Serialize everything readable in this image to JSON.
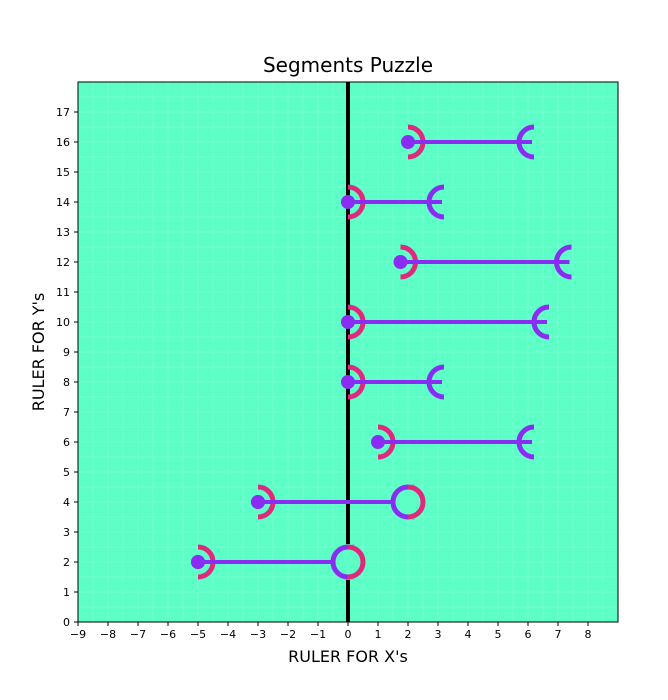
{
  "chart_data": {
    "type": "segments",
    "title": "Segments Puzzle",
    "xlabel": "RULER FOR X's",
    "ylabel": "RULER FOR Y's",
    "xlim": [
      -9,
      9
    ],
    "ylim": [
      0,
      18
    ],
    "x_ticks": [
      -9,
      -8,
      -7,
      -6,
      -5,
      -4,
      -3,
      -2,
      -1,
      0,
      1,
      2,
      3,
      4,
      5,
      6,
      7,
      8
    ],
    "y_ticks": [
      0,
      1,
      2,
      3,
      4,
      5,
      6,
      7,
      8,
      9,
      10,
      11,
      12,
      13,
      14,
      15,
      16,
      17
    ],
    "grid": true,
    "reference_line_x": 0,
    "colors": {
      "background": "#5effc6",
      "segment": "#8b2cf5",
      "accent": "#e0287c",
      "reference_line": "#000000"
    },
    "segments": [
      {
        "y": 16,
        "x_start": 2,
        "x_end": 6
      },
      {
        "y": 14,
        "x_start": 0,
        "x_end": 3
      },
      {
        "y": 12,
        "x_start": 1.75,
        "x_end": 7.25
      },
      {
        "y": 10,
        "x_start": 0,
        "x_end": 6.5
      },
      {
        "y": 8,
        "x_start": 0,
        "x_end": 3
      },
      {
        "y": 6,
        "x_start": 1,
        "x_end": 6
      },
      {
        "y": 4,
        "x_start": -3,
        "x_end": 2
      },
      {
        "y": 2,
        "x_start": -5,
        "x_end": 0
      }
    ]
  }
}
